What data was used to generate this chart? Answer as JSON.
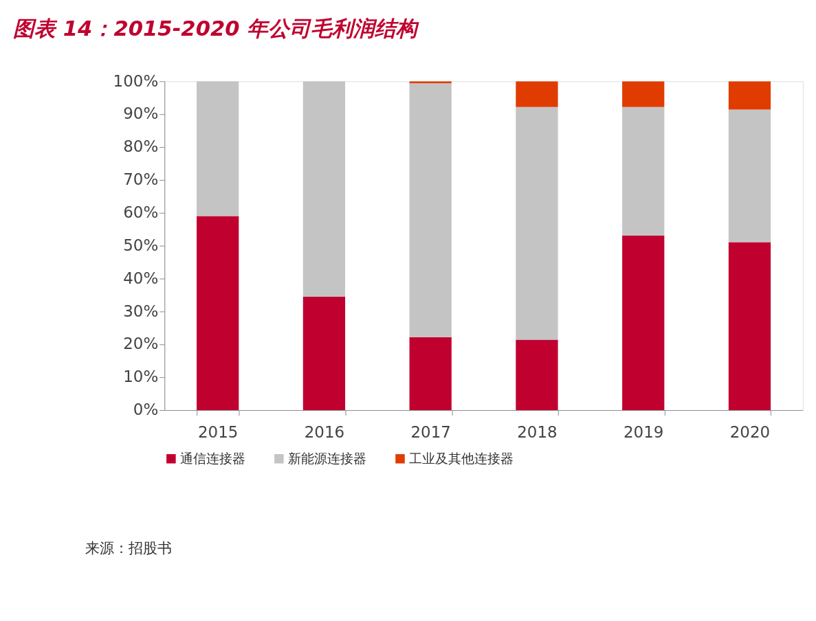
{
  "chart_data": {
    "type": "bar",
    "title": "图表 14：2015-2020 年公司毛利润结构",
    "stacked": true,
    "categories": [
      "2015",
      "2016",
      "2017",
      "2018",
      "2019",
      "2020"
    ],
    "series": [
      {
        "name": "通信连接器",
        "color": "#c0002f",
        "values": [
          59,
          34.5,
          22.2,
          21.4,
          53.1,
          51.1
        ]
      },
      {
        "name": "新能源连接器",
        "color": "#c4c4c4",
        "values": [
          41,
          65.5,
          77.2,
          70.8,
          39.1,
          40.3
        ]
      },
      {
        "name": "工业及其他连接器",
        "color": "#e03c00",
        "values": [
          0,
          0,
          0.6,
          7.8,
          7.8,
          8.6
        ]
      }
    ],
    "ylim": [
      0,
      100
    ],
    "yticks": [
      {
        "value": 0,
        "label": "0%"
      },
      {
        "value": 10,
        "label": "10%"
      },
      {
        "value": 20,
        "label": "20%"
      },
      {
        "value": 30,
        "label": "30%"
      },
      {
        "value": 40,
        "label": "40%"
      },
      {
        "value": 50,
        "label": "50%"
      },
      {
        "value": 60,
        "label": "60%"
      },
      {
        "value": 70,
        "label": "70%"
      },
      {
        "value": 80,
        "label": "80%"
      },
      {
        "value": 90,
        "label": "90%"
      },
      {
        "value": 100,
        "label": "100%"
      }
    ],
    "grid": false,
    "legend": "bottom",
    "annotations": [
      "来源：招股书"
    ]
  }
}
